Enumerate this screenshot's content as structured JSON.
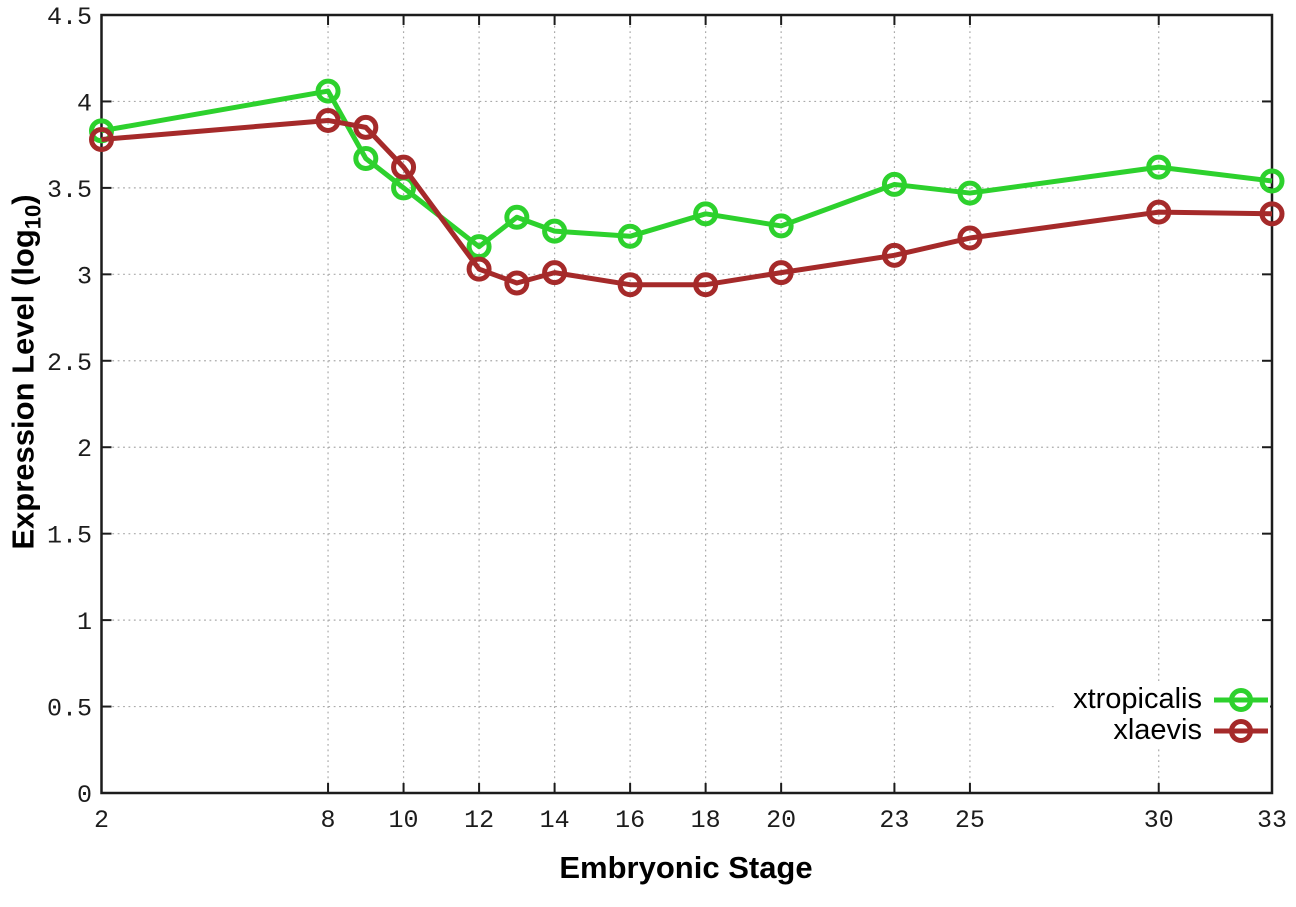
{
  "chart_data": {
    "type": "line",
    "title": "",
    "xlabel": "Embryonic Stage",
    "ylabel": "Expression Level (log10)",
    "ylabel_parts": {
      "main": "Expression Level (log",
      "sub": "10",
      "end": ")"
    },
    "xlim": [
      2,
      33
    ],
    "ylim": [
      0,
      4.5
    ],
    "grid": true,
    "legend_position": "right-center-low",
    "x": [
      2,
      8,
      9,
      10,
      12,
      13,
      14,
      16,
      18,
      20,
      23,
      25,
      30,
      33
    ],
    "xticks": [
      {
        "value": 2,
        "label": "2"
      },
      {
        "value": 8,
        "label": "8"
      },
      {
        "value": 10,
        "label": "10"
      },
      {
        "value": 12,
        "label": "12"
      },
      {
        "value": 14,
        "label": "14"
      },
      {
        "value": 16,
        "label": "16"
      },
      {
        "value": 18,
        "label": "18"
      },
      {
        "value": 20,
        "label": "20"
      },
      {
        "value": 23,
        "label": "23"
      },
      {
        "value": 25,
        "label": "25"
      },
      {
        "value": 30,
        "label": "30"
      },
      {
        "value": 33,
        "label": "33"
      }
    ],
    "yticks": [
      {
        "value": 0,
        "label": "0"
      },
      {
        "value": 0.5,
        "label": "0.5"
      },
      {
        "value": 1,
        "label": "1"
      },
      {
        "value": 1.5,
        "label": "1.5"
      },
      {
        "value": 2,
        "label": "2"
      },
      {
        "value": 2.5,
        "label": "2.5"
      },
      {
        "value": 3,
        "label": "3"
      },
      {
        "value": 3.5,
        "label": "3.5"
      },
      {
        "value": 4,
        "label": "4"
      },
      {
        "value": 4.5,
        "label": "4.5"
      }
    ],
    "series": [
      {
        "name": "xtropicalis",
        "color": "#2dd12d",
        "marker": "open-circle",
        "values": [
          3.83,
          4.06,
          3.67,
          3.5,
          3.16,
          3.33,
          3.25,
          3.22,
          3.35,
          3.28,
          3.52,
          3.47,
          3.62,
          3.54
        ]
      },
      {
        "name": "xlaevis",
        "color": "#a52a2a",
        "marker": "open-circle",
        "values": [
          3.78,
          3.89,
          3.85,
          3.62,
          3.03,
          2.95,
          3.01,
          2.94,
          2.94,
          3.01,
          3.11,
          3.21,
          3.36,
          3.35
        ]
      }
    ]
  },
  "colors": {
    "background": "#ffffff",
    "axis": "#1c1c1c",
    "grid": "#aaaaaa",
    "tick_text": "#1c1c1c"
  }
}
